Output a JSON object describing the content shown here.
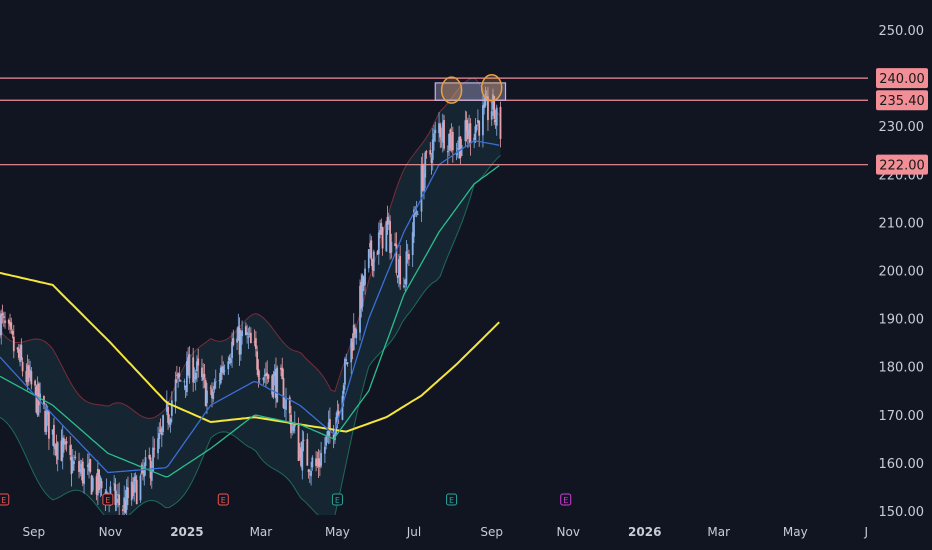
{
  "chart_data": {
    "type": "candlestick",
    "title": "",
    "ylim": [
      150,
      255
    ],
    "y_ticks": [
      "250.00",
      "240.00",
      "230.00",
      "220.00",
      "210.00",
      "200.00",
      "190.00",
      "180.00",
      "170.00",
      "160.00",
      "150.00"
    ],
    "x_ticks": [
      "Sep",
      "Nov",
      "2025",
      "Mar",
      "May",
      "Jul",
      "Sep",
      "Nov",
      "2026",
      "Mar",
      "May",
      "Jul"
    ],
    "x_tick_dates": [
      "2024-09-01",
      "2024-11-01",
      "2025-01-01",
      "2025-03-01",
      "2025-05-01",
      "2025-07-01",
      "2025-09-01",
      "2025-11-01",
      "2026-01-01",
      "2026-03-01",
      "2026-05-01",
      "2026-07-01"
    ],
    "x_range": [
      "2024-08-05",
      "2026-08-18"
    ],
    "horizontal_levels": [
      {
        "value": 240.0,
        "label": "240.00"
      },
      {
        "value": 235.4,
        "label": "235.40"
      },
      {
        "value": 222.0,
        "label": "222.00"
      }
    ],
    "resistance_zone": {
      "from_date": "2025-07-18",
      "to_date": "2025-09-12",
      "low": 235.4,
      "high": 239.0
    },
    "circled_highs": [
      {
        "date": "2025-07-31",
        "value": 237.5
      },
      {
        "date": "2025-09-01",
        "value": 238.0
      }
    ],
    "event_markers": [
      {
        "date": "2024-08-08",
        "label": "E",
        "color": "#ef5350"
      },
      {
        "date": "2024-10-30",
        "label": "E",
        "color": "#ef5350"
      },
      {
        "date": "2025-01-30",
        "label": "E",
        "color": "#ef5350"
      },
      {
        "date": "2025-05-01",
        "label": "E",
        "color": "#26a69a"
      },
      {
        "date": "2025-07-31",
        "label": "E",
        "color": "#26a69a"
      },
      {
        "date": "2025-10-30",
        "label": "E",
        "color": "#ce3dd6"
      }
    ],
    "price_series": {
      "dates": [
        "2024-08-05",
        "2024-08-19",
        "2024-09-02",
        "2024-09-16",
        "2024-09-30",
        "2024-10-14",
        "2024-10-28",
        "2024-11-11",
        "2024-11-25",
        "2024-12-09",
        "2024-12-23",
        "2025-01-06",
        "2025-01-20",
        "2025-02-03",
        "2025-02-17",
        "2025-03-03",
        "2025-03-17",
        "2025-03-31",
        "2025-04-14",
        "2025-04-28",
        "2025-05-12",
        "2025-05-26",
        "2025-06-09",
        "2025-06-23",
        "2025-07-07",
        "2025-07-21",
        "2025-08-04",
        "2025-08-18",
        "2025-09-01",
        "2025-09-08"
      ],
      "values": [
        190,
        182,
        174,
        166,
        160,
        157,
        154,
        151,
        156,
        163,
        176,
        180,
        173,
        184,
        186,
        179,
        176,
        163,
        159,
        168,
        185,
        202,
        209,
        198,
        219,
        230,
        226,
        230,
        234,
        229
      ]
    },
    "series": [
      {
        "name": "",
        "color": "#f5e53d",
        "dates": [
          "2024-08-05",
          "2024-09-16",
          "2024-11-01",
          "2024-12-16",
          "2025-01-20",
          "2025-02-24",
          "2025-04-01",
          "2025-05-08",
          "2025-06-09",
          "2025-07-07",
          "2025-08-04",
          "2025-09-08"
        ],
        "values": [
          199.5,
          197,
          185,
          172.5,
          168.5,
          169.5,
          168,
          166.5,
          169.5,
          174,
          180.5,
          189.5
        ]
      },
      {
        "name": "",
        "color": "#2bbd8e",
        "dates": [
          "2024-08-05",
          "2024-09-16",
          "2024-10-30",
          "2024-12-16",
          "2025-01-20",
          "2025-02-24",
          "2025-04-01",
          "2025-04-28",
          "2025-05-26",
          "2025-06-23",
          "2025-07-21",
          "2025-08-18",
          "2025-09-08"
        ],
        "values": [
          178,
          172,
          162,
          157,
          163,
          170,
          168,
          165,
          175,
          195,
          208,
          218,
          222
        ]
      },
      {
        "name": "",
        "color": "#3b6fd6",
        "dates": [
          "2024-08-05",
          "2024-09-16",
          "2024-10-30",
          "2024-12-16",
          "2025-01-20",
          "2025-02-24",
          "2025-04-01",
          "2025-04-28",
          "2025-05-26",
          "2025-06-23",
          "2025-07-21",
          "2025-08-18",
          "2025-09-08"
        ],
        "values": [
          182,
          170,
          158,
          159,
          172,
          177,
          172,
          166,
          190,
          208,
          222,
          227,
          226
        ]
      }
    ],
    "bollinger": {
      "dates": [
        "2024-08-05",
        "2024-09-16",
        "2024-10-30",
        "2024-12-16",
        "2025-01-20",
        "2025-02-24",
        "2025-04-01",
        "2025-04-28",
        "2025-05-26",
        "2025-06-23",
        "2025-07-21",
        "2025-08-18",
        "2025-09-08"
      ],
      "upper": [
        189,
        182,
        170,
        172,
        187,
        189,
        185,
        172,
        200,
        219,
        235,
        238,
        234
      ],
      "lower": [
        168,
        154,
        150,
        150,
        164,
        165,
        151,
        150,
        178,
        192,
        196,
        220,
        222
      ]
    },
    "colors": {
      "background": "#111522",
      "up": "#8ab0e6",
      "down": "#e8a0aa",
      "level_line": "#f0909a",
      "label_bg": "#f28e96",
      "zone": "#c7b3e3",
      "circle": "#e8a040",
      "axis_text": "#c8ccd4"
    }
  }
}
